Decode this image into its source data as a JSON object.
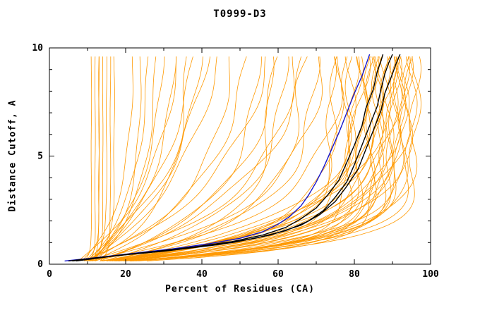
{
  "chart_data": {
    "type": "line",
    "title": "T0999-D3",
    "xlabel": "Percent of Residues (CA)",
    "ylabel": "Distance Cutoff, A",
    "xlim": [
      0,
      100
    ],
    "ylim": [
      0,
      10
    ],
    "x_ticks": [
      0,
      20,
      40,
      60,
      80,
      100
    ],
    "x_minor_step": 10,
    "y_ticks": [
      0,
      5,
      10
    ],
    "y_minor_step": 1,
    "grid": false,
    "legend": "none",
    "colors": {
      "orange": "#ff9900",
      "blue": "#1515cc",
      "black": "#000000",
      "axis": "#000000"
    },
    "orange_curves": [
      [
        9,
        12,
        0.3
      ],
      [
        10,
        13,
        0.4
      ],
      [
        8,
        11,
        0.3
      ],
      [
        11,
        14,
        0.5
      ],
      [
        9,
        15,
        0.6
      ],
      [
        10,
        17,
        0.8
      ],
      [
        8,
        13,
        0.5
      ],
      [
        12,
        16,
        0.4
      ],
      [
        8,
        22,
        2.5
      ],
      [
        9,
        26,
        3.0
      ],
      [
        10,
        30,
        3.5
      ],
      [
        7,
        34,
        4.0
      ],
      [
        9,
        38,
        4.5
      ],
      [
        8,
        42,
        5.0
      ],
      [
        10,
        24,
        2.0
      ],
      [
        11,
        28,
        2.8
      ],
      [
        9,
        33,
        3.2
      ],
      [
        10,
        45,
        5.0
      ],
      [
        8,
        36,
        2.2
      ],
      [
        9,
        40,
        3.8
      ],
      [
        8,
        48,
        3.0
      ],
      [
        9,
        52,
        3.5
      ],
      [
        10,
        55,
        2.5
      ],
      [
        8,
        58,
        4.0
      ],
      [
        9,
        60,
        3.0
      ],
      [
        10,
        62,
        2.2
      ],
      [
        8,
        65,
        2.8
      ],
      [
        9,
        68,
        3.5
      ],
      [
        10,
        70,
        2.0
      ],
      [
        8,
        72,
        2.5
      ],
      [
        9,
        66,
        1.8
      ],
      [
        10,
        58,
        1.5
      ],
      [
        7,
        76,
        1.2
      ],
      [
        8,
        78,
        1.0
      ],
      [
        9,
        80,
        1.4
      ],
      [
        8,
        82,
        0.9
      ],
      [
        7,
        84,
        1.1
      ],
      [
        9,
        85,
        1.3
      ],
      [
        8,
        86,
        0.8
      ],
      [
        10,
        87,
        1.0
      ],
      [
        7,
        88,
        1.2
      ],
      [
        8,
        88,
        0.7
      ],
      [
        9,
        89,
        0.9
      ],
      [
        8,
        90,
        1.1
      ],
      [
        7,
        90,
        0.8
      ],
      [
        9,
        91,
        1.0
      ],
      [
        8,
        91,
        1.3
      ],
      [
        10,
        92,
        0.9
      ],
      [
        7,
        92,
        1.5
      ],
      [
        8,
        93,
        0.8
      ],
      [
        9,
        93,
        1.1
      ],
      [
        8,
        94,
        0.95
      ],
      [
        7,
        94,
        1.3
      ],
      [
        9,
        95,
        0.85
      ],
      [
        8,
        95,
        1.6
      ],
      [
        10,
        96,
        1.0
      ],
      [
        7,
        96,
        0.75
      ],
      [
        8,
        85,
        1.8
      ],
      [
        9,
        83,
        2.0
      ],
      [
        8,
        87,
        1.7
      ],
      [
        9,
        89,
        1.9
      ],
      [
        10,
        90,
        2.1
      ],
      [
        8,
        92,
        1.8
      ],
      [
        9,
        86,
        0.65
      ],
      [
        8,
        84,
        0.6
      ],
      [
        7,
        82,
        0.7
      ],
      [
        9,
        79,
        0.75
      ],
      [
        10,
        81,
        1.6
      ],
      [
        8,
        77,
        2.2
      ],
      [
        9,
        75,
        1.4
      ],
      [
        10,
        74,
        1.1
      ],
      [
        8,
        79,
        0.65
      ]
    ],
    "blue_curve": [
      [
        4,
        0.15
      ],
      [
        12,
        0.3
      ],
      [
        22,
        0.5
      ],
      [
        32,
        0.7
      ],
      [
        42,
        0.95
      ],
      [
        50,
        1.2
      ],
      [
        56,
        1.5
      ],
      [
        60,
        1.85
      ],
      [
        63,
        2.2
      ],
      [
        66,
        2.7
      ],
      [
        68,
        3.2
      ],
      [
        70,
        3.8
      ],
      [
        72,
        4.5
      ],
      [
        74,
        5.3
      ],
      [
        76,
        6.1
      ],
      [
        78,
        7.0
      ],
      [
        80,
        7.9
      ],
      [
        82,
        8.7
      ],
      [
        83,
        9.2
      ],
      [
        84,
        9.7
      ]
    ],
    "black_curves": [
      [
        [
          5,
          0.15
        ],
        [
          15,
          0.35
        ],
        [
          26,
          0.55
        ],
        [
          38,
          0.8
        ],
        [
          48,
          1.05
        ],
        [
          56,
          1.35
        ],
        [
          62,
          1.7
        ],
        [
          66,
          2.1
        ],
        [
          70,
          2.6
        ],
        [
          73,
          3.2
        ],
        [
          76,
          3.9
        ],
        [
          78,
          4.7
        ],
        [
          80,
          5.5
        ],
        [
          82,
          6.4
        ],
        [
          83,
          7.2
        ],
        [
          85,
          8.1
        ],
        [
          86,
          8.9
        ],
        [
          87,
          9.4
        ],
        [
          87.5,
          9.7
        ]
      ],
      [
        [
          6,
          0.15
        ],
        [
          18,
          0.4
        ],
        [
          30,
          0.6
        ],
        [
          44,
          0.9
        ],
        [
          54,
          1.2
        ],
        [
          62,
          1.55
        ],
        [
          68,
          2.0
        ],
        [
          72,
          2.5
        ],
        [
          75,
          3.1
        ],
        [
          78,
          3.8
        ],
        [
          80,
          4.6
        ],
        [
          82,
          5.5
        ],
        [
          84,
          6.4
        ],
        [
          86,
          7.3
        ],
        [
          87,
          8.1
        ],
        [
          88,
          8.8
        ],
        [
          89,
          9.3
        ],
        [
          90,
          9.7
        ]
      ],
      [
        [
          7,
          0.15
        ],
        [
          20,
          0.45
        ],
        [
          34,
          0.7
        ],
        [
          48,
          1.0
        ],
        [
          58,
          1.35
        ],
        [
          66,
          1.8
        ],
        [
          71,
          2.3
        ],
        [
          75,
          2.9
        ],
        [
          78,
          3.6
        ],
        [
          81,
          4.4
        ],
        [
          83,
          5.3
        ],
        [
          85,
          6.2
        ],
        [
          87,
          7.1
        ],
        [
          88,
          7.9
        ],
        [
          90,
          8.8
        ],
        [
          91,
          9.3
        ],
        [
          92,
          9.7
        ]
      ]
    ]
  }
}
